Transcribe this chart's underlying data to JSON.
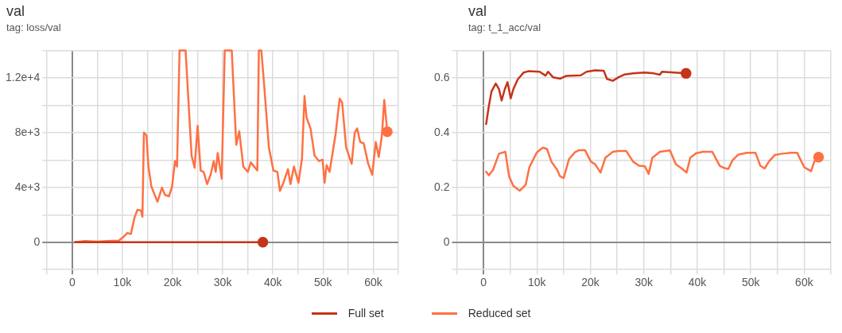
{
  "chart_data": [
    {
      "type": "line",
      "title": "val",
      "subtitle": "tag: loss/val",
      "grid": true,
      "legend": "bottom",
      "line_style": "solid",
      "xlim": [
        -5000,
        65000
      ],
      "xticks": [
        {
          "value": -5000,
          "label": null
        },
        0,
        {
          "value": 5000,
          "label": null
        },
        {
          "value": 10000,
          "label": "10k"
        },
        {
          "value": 15000,
          "label": null
        },
        {
          "value": 20000,
          "label": "20k"
        },
        {
          "value": 25000,
          "label": null
        },
        {
          "value": 30000,
          "label": "30k"
        },
        {
          "value": 35000,
          "label": null
        },
        {
          "value": 40000,
          "label": "40k"
        },
        {
          "value": 45000,
          "label": null
        },
        {
          "value": 50000,
          "label": "50k"
        },
        {
          "value": 55000,
          "label": null
        },
        {
          "value": 60000,
          "label": "60k"
        },
        {
          "value": 65000,
          "label": null
        }
      ],
      "ylim": [
        -2000,
        14000
      ],
      "yticks": [
        {
          "value": -2000,
          "label": null
        },
        0,
        {
          "value": 2000,
          "label": null
        },
        {
          "value": 4000,
          "label": "4e+3"
        },
        {
          "value": 6000,
          "label": null
        },
        {
          "value": 8000,
          "label": "8e+3"
        },
        {
          "value": 10000,
          "label": null
        },
        {
          "value": 12000,
          "label": "1.2e+4"
        },
        {
          "value": 14000,
          "label": null
        }
      ],
      "series": [
        {
          "name": "Full set",
          "color": "#c5341a",
          "x": [
            600,
            10000,
            20000,
            30000,
            38000
          ],
          "values": [
            0,
            0,
            0,
            0,
            0
          ]
        },
        {
          "name": "Reduced set",
          "color": "#ff7043",
          "x": [
            600,
            2500,
            4900,
            7200,
            9300,
            10200,
            11000,
            11700,
            12400,
            13000,
            13700,
            14000,
            14300,
            14800,
            15200,
            15800,
            17000,
            17900,
            18500,
            19300,
            19900,
            20500,
            20900,
            21400,
            22600,
            23800,
            24400,
            25000,
            25600,
            26200,
            26900,
            27600,
            28200,
            28600,
            29000,
            29800,
            30400,
            31800,
            32700,
            33300,
            34100,
            35000,
            35600,
            36900,
            37200,
            37700,
            38300,
            39200,
            40100,
            40900,
            41400,
            42100,
            43000,
            43500,
            44200,
            45100,
            45800,
            46300,
            46700,
            47500,
            48300,
            49200,
            49900,
            50300,
            50700,
            51300,
            52500,
            53300,
            53800,
            54600,
            55700,
            56300,
            56800,
            57400,
            58100,
            59000,
            59800,
            60500,
            61100,
            61700,
            62200,
            62800
          ],
          "values": [
            0,
            80,
            40,
            80,
            120,
            380,
            670,
            600,
            1760,
            2360,
            2320,
            1860,
            8000,
            7800,
            5520,
            4040,
            2950,
            3980,
            3450,
            3350,
            4040,
            5920,
            5520,
            14000,
            14000,
            6320,
            5430,
            8500,
            5230,
            5130,
            4240,
            4930,
            5920,
            5130,
            6510,
            4630,
            14000,
            14000,
            7110,
            8100,
            5520,
            5130,
            5820,
            5230,
            14000,
            14000,
            11270,
            6910,
            5230,
            5130,
            3740,
            4340,
            5330,
            4240,
            5520,
            4340,
            6120,
            10670,
            9090,
            8300,
            6320,
            5920,
            6020,
            4340,
            5620,
            5130,
            7900,
            10480,
            10180,
            6910,
            5720,
            8000,
            8300,
            7310,
            7210,
            5720,
            4930,
            7310,
            6220,
            7700,
            10380,
            8060
          ]
        }
      ]
    },
    {
      "type": "line",
      "title": "val",
      "subtitle": "tag: t_1_acc/val",
      "grid": true,
      "legend": "bottom",
      "line_style": "solid",
      "xlim": [
        -5000,
        65000
      ],
      "xticks": [
        {
          "value": -5000,
          "label": null
        },
        0,
        {
          "value": 5000,
          "label": null
        },
        {
          "value": 10000,
          "label": "10k"
        },
        {
          "value": 15000,
          "label": null
        },
        {
          "value": 20000,
          "label": "20k"
        },
        {
          "value": 25000,
          "label": null
        },
        {
          "value": 30000,
          "label": "30k"
        },
        {
          "value": 35000,
          "label": null
        },
        {
          "value": 40000,
          "label": "40k"
        },
        {
          "value": 45000,
          "label": null
        },
        {
          "value": 50000,
          "label": "50k"
        },
        {
          "value": 55000,
          "label": null
        },
        {
          "value": 60000,
          "label": "60k"
        },
        {
          "value": 65000,
          "label": null
        }
      ],
      "ylim": [
        -0.1,
        0.7
      ],
      "yticks": [
        {
          "value": -0.1,
          "label": null
        },
        0,
        {
          "value": 0.1,
          "label": null
        },
        0.2,
        {
          "value": 0.3,
          "label": null
        },
        0.4,
        {
          "value": 0.5,
          "label": null
        },
        0.6,
        {
          "value": 0.7,
          "label": null
        }
      ],
      "series": [
        {
          "name": "Full set",
          "color": "#c5341a",
          "x": [
            500,
            1000,
            1500,
            2300,
            2900,
            3400,
            4000,
            4500,
            5100,
            5600,
            6400,
            7500,
            8400,
            10500,
            11600,
            12100,
            13000,
            14400,
            15500,
            18200,
            19300,
            20900,
            22500,
            23100,
            24200,
            25300,
            26400,
            28000,
            30200,
            31900,
            33000,
            33400,
            35700,
            37900
          ],
          "values": [
            0.431,
            0.496,
            0.55,
            0.579,
            0.559,
            0.517,
            0.559,
            0.584,
            0.525,
            0.559,
            0.594,
            0.619,
            0.624,
            0.622,
            0.608,
            0.622,
            0.602,
            0.597,
            0.607,
            0.609,
            0.622,
            0.627,
            0.626,
            0.596,
            0.589,
            0.602,
            0.612,
            0.616,
            0.619,
            0.616,
            0.611,
            0.622,
            0.619,
            0.616
          ]
        },
        {
          "name": "Reduced set",
          "color": "#ff7043",
          "x": [
            500,
            1000,
            1800,
            2900,
            4100,
            4800,
            5600,
            6800,
            7900,
            8600,
            10000,
            11100,
            11900,
            12700,
            13800,
            14300,
            15000,
            16000,
            17100,
            17900,
            19000,
            20100,
            20900,
            21900,
            22800,
            24200,
            25300,
            26700,
            28000,
            29100,
            30200,
            30900,
            31600,
            33000,
            34900,
            36000,
            37100,
            38000,
            38700,
            39800,
            41100,
            42800,
            44200,
            45000,
            45800,
            46600,
            47700,
            49300,
            50900,
            51800,
            52600,
            53400,
            54500,
            55900,
            57500,
            58700,
            60000,
            61300,
            61900,
            62700
          ],
          "values": [
            0.257,
            0.244,
            0.264,
            0.323,
            0.33,
            0.239,
            0.205,
            0.188,
            0.21,
            0.274,
            0.328,
            0.345,
            0.34,
            0.294,
            0.264,
            0.241,
            0.234,
            0.303,
            0.328,
            0.336,
            0.336,
            0.294,
            0.284,
            0.254,
            0.308,
            0.33,
            0.333,
            0.333,
            0.294,
            0.279,
            0.277,
            0.249,
            0.308,
            0.33,
            0.335,
            0.284,
            0.269,
            0.254,
            0.308,
            0.325,
            0.33,
            0.33,
            0.279,
            0.271,
            0.267,
            0.299,
            0.32,
            0.326,
            0.326,
            0.279,
            0.269,
            0.294,
            0.318,
            0.323,
            0.326,
            0.326,
            0.274,
            0.259,
            0.294,
            0.31
          ]
        }
      ]
    }
  ]
}
